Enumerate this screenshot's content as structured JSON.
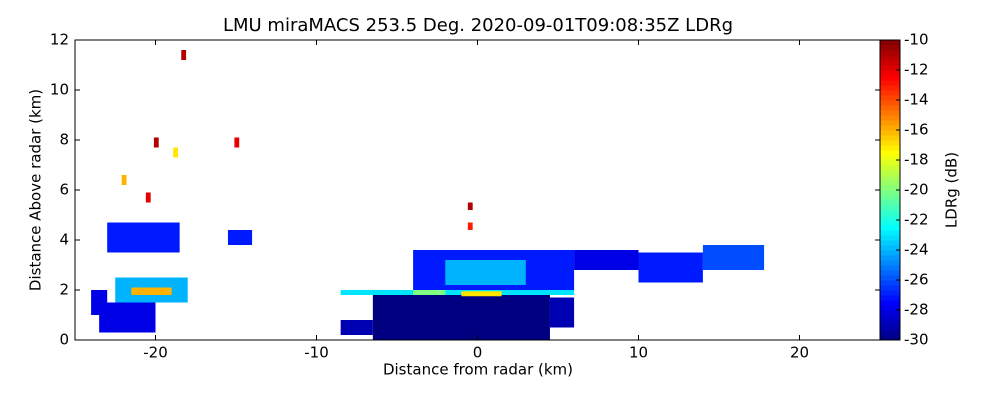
{
  "chart_data": {
    "type": "heatmap",
    "title": "LMU miraMACS 253.5 Deg. 2020-09-01T09:08:35Z  LDRg",
    "x_label": "Distance from radar (km)",
    "y_label": "Distance Above radar  (km)",
    "colorbar_label": "LDRg (dB)",
    "xlim": [
      -25,
      25
    ],
    "ylim": [
      0,
      12
    ],
    "clim": [
      -30,
      -10
    ],
    "xticks": [
      -20,
      -10,
      0,
      10,
      20
    ],
    "yticks": [
      0,
      2,
      4,
      6,
      8,
      10,
      12
    ],
    "cticks": [
      -30,
      -28,
      -26,
      -24,
      -22,
      -20,
      -18,
      -16,
      -14,
      -12,
      -10
    ],
    "colormap": "jet",
    "cells": [
      {
        "x": [
          -6.5,
          4.5
        ],
        "y": [
          0,
          1.8
        ],
        "value": -30
      },
      {
        "x": [
          4.5,
          6
        ],
        "y": [
          0.5,
          1.7
        ],
        "value": -29
      },
      {
        "x": [
          -8.5,
          -6.5
        ],
        "y": [
          0.2,
          0.8
        ],
        "value": -29
      },
      {
        "x": [
          -8.5,
          6
        ],
        "y": [
          1.8,
          2.0
        ],
        "value": -23
      },
      {
        "x": [
          -4,
          -2
        ],
        "y": [
          1.8,
          2.0
        ],
        "value": -20
      },
      {
        "x": [
          -1,
          1.5
        ],
        "y": [
          1.75,
          1.95
        ],
        "value": -17
      },
      {
        "x": [
          -4,
          6
        ],
        "y": [
          2.0,
          3.6
        ],
        "value": -27
      },
      {
        "x": [
          -2,
          3
        ],
        "y": [
          2.2,
          3.2
        ],
        "value": -24
      },
      {
        "x": [
          6,
          10
        ],
        "y": [
          2.8,
          3.6
        ],
        "value": -28
      },
      {
        "x": [
          10,
          14
        ],
        "y": [
          2.3,
          3.5
        ],
        "value": -27
      },
      {
        "x": [
          14,
          17.8
        ],
        "y": [
          2.8,
          3.8
        ],
        "value": -26
      },
      {
        "x": [
          -23.5,
          -20
        ],
        "y": [
          0.3,
          1.5
        ],
        "value": -28
      },
      {
        "x": [
          -24,
          -23
        ],
        "y": [
          1.0,
          2.0
        ],
        "value": -28
      },
      {
        "x": [
          -22.5,
          -18
        ],
        "y": [
          1.5,
          2.5
        ],
        "value": -24
      },
      {
        "x": [
          -21.5,
          -19
        ],
        "y": [
          1.8,
          2.1
        ],
        "value": -16
      },
      {
        "x": [
          -23,
          -18.5
        ],
        "y": [
          3.5,
          4.7
        ],
        "value": -27
      },
      {
        "x": [
          -15.5,
          -14
        ],
        "y": [
          3.8,
          4.4
        ],
        "value": -27
      },
      {
        "x": [
          -18.4,
          -18.1
        ],
        "y": [
          11.2,
          11.6
        ],
        "value": -11
      },
      {
        "x": [
          -20.1,
          -19.8
        ],
        "y": [
          7.7,
          8.1
        ],
        "value": -11
      },
      {
        "x": [
          -18.9,
          -18.6
        ],
        "y": [
          7.3,
          7.7
        ],
        "value": -17
      },
      {
        "x": [
          -15.1,
          -14.8
        ],
        "y": [
          7.7,
          8.1
        ],
        "value": -12
      },
      {
        "x": [
          -22.1,
          -21.8
        ],
        "y": [
          6.2,
          6.6
        ],
        "value": -16
      },
      {
        "x": [
          -20.6,
          -20.3
        ],
        "y": [
          5.5,
          5.9
        ],
        "value": -12
      },
      {
        "x": [
          -0.6,
          -0.3
        ],
        "y": [
          5.2,
          5.5
        ],
        "value": -11
      },
      {
        "x": [
          -0.6,
          -0.3
        ],
        "y": [
          4.4,
          4.7
        ],
        "value": -13
      }
    ]
  }
}
